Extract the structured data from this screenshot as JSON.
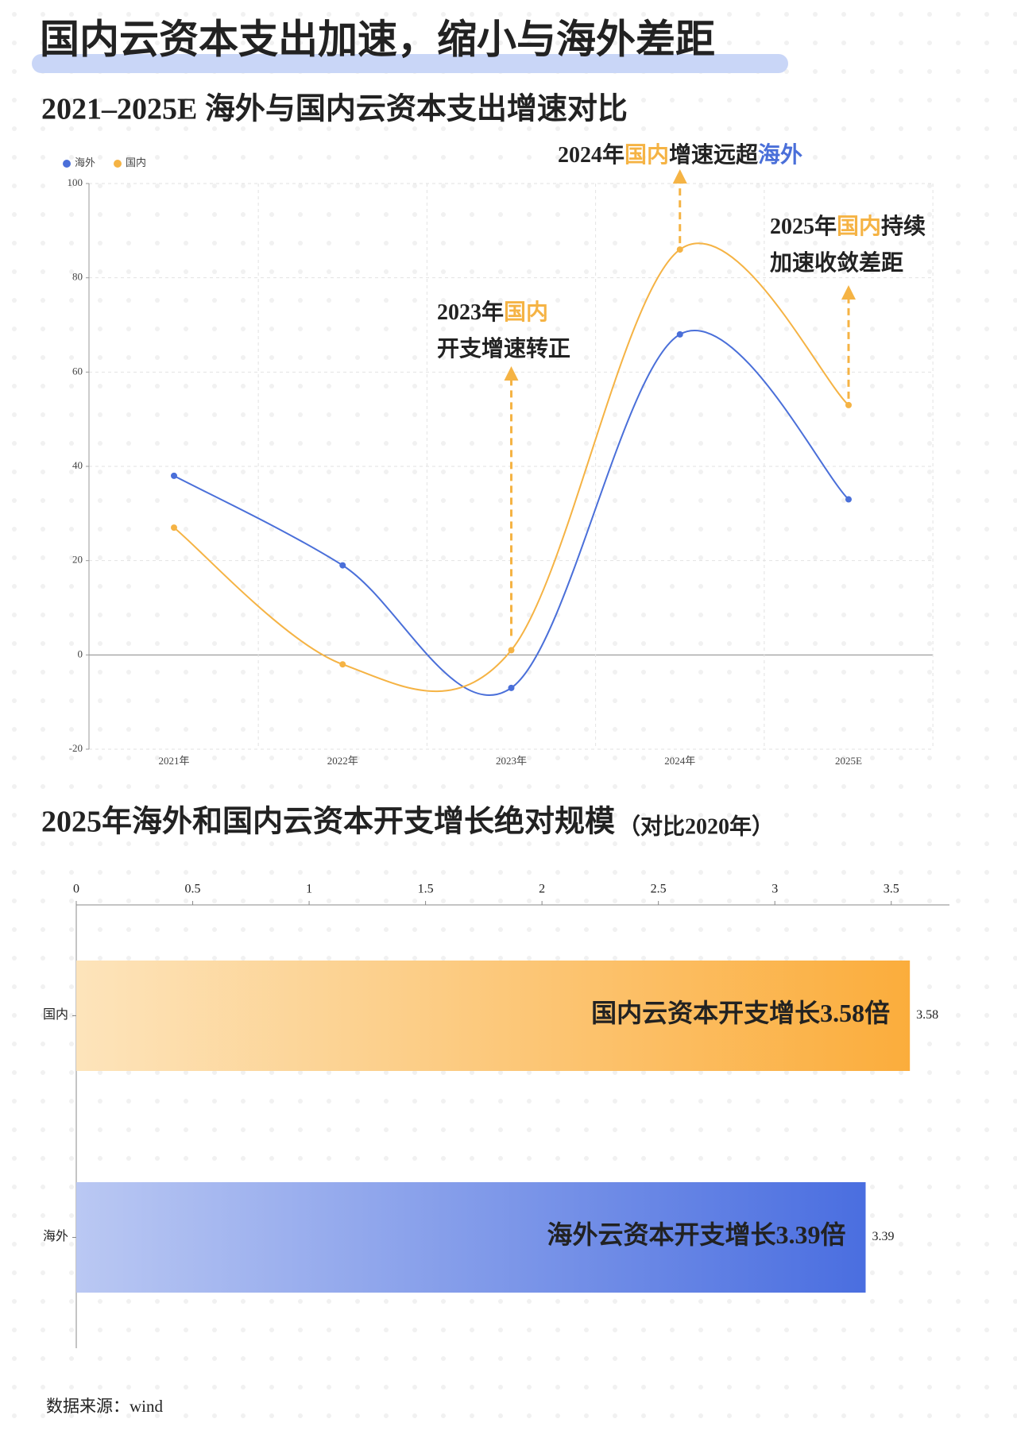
{
  "title": "国内云资本支出加速，缩小与海外差距",
  "source": "数据来源：wind",
  "chart_data": [
    {
      "type": "line",
      "title": "2021–2025E 海外与国内云资本支出增速对比",
      "categories": [
        "2021年",
        "2022年",
        "2023年",
        "2024年",
        "2025E"
      ],
      "series": [
        {
          "name": "海外",
          "color": "#4a6fd9",
          "values": [
            38,
            19,
            -7,
            68,
            33
          ]
        },
        {
          "name": "国内",
          "color": "#f5b344",
          "values": [
            27,
            -2,
            1,
            86,
            53
          ]
        }
      ],
      "ylim": [
        -20,
        100
      ],
      "yticks": [
        -20,
        0,
        20,
        40,
        60,
        80,
        100
      ],
      "grid": true,
      "legend": "top-left",
      "annotations": [
        {
          "lines": [
            [
              "2023年",
              "国内"
            ],
            [
              "开支增速转正"
            ]
          ]
        },
        {
          "lines": [
            [
              "2024年",
              "国内",
              "增速远超",
              "海外"
            ]
          ]
        },
        {
          "lines": [
            [
              "2025年",
              "国内",
              "持续"
            ],
            [
              "加速收敛差距"
            ]
          ]
        }
      ]
    },
    {
      "type": "hbar",
      "title": "2025年海外和国内云资本开支增长绝对规模",
      "subtitle": "（对比2020年）",
      "categories": [
        "国内",
        "海外"
      ],
      "values": [
        3.58,
        3.39
      ],
      "colors": [
        [
          "#fde4bb",
          "#fbad3c"
        ],
        [
          "#bac8f3",
          "#4a6ee0"
        ]
      ],
      "inner_labels": [
        "国内云资本开支增长3.58倍",
        "海外云资本开支增长3.39倍"
      ],
      "xlim": [
        0,
        3.75
      ],
      "xticks": [
        0,
        0.5,
        1,
        1.5,
        2,
        2.5,
        3,
        3.5
      ]
    }
  ]
}
